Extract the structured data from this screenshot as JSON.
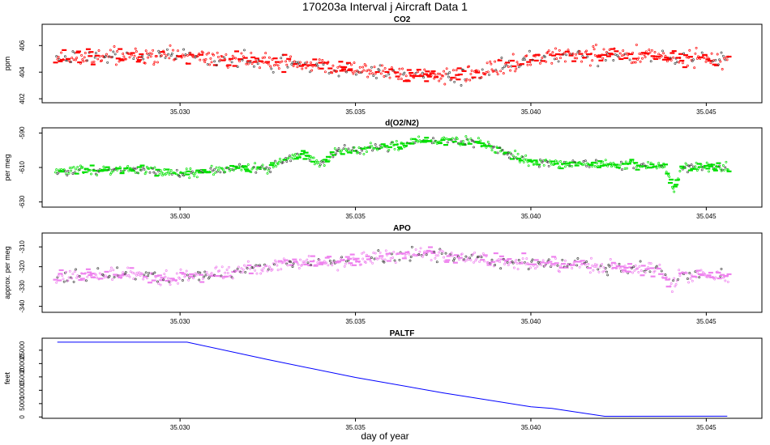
{
  "figure": {
    "title": "170203a   Interval j Aircraft Data 1",
    "xlabel": "day of year"
  },
  "chart_data": [
    {
      "type": "scatter",
      "title": "CO2",
      "ylabel": "ppm",
      "color": "#ff0000",
      "xlim": [
        35.0263,
        35.0458
      ],
      "ylim": [
        401.7,
        407.6
      ],
      "xticks": [
        35.03,
        35.035,
        35.04,
        35.045
      ],
      "xtick_labels": [
        "35.030",
        "35.035",
        "35.040",
        "35.045"
      ],
      "yticks": [
        402,
        404,
        406
      ],
      "ytick_labels": [
        "402",
        "404",
        "406"
      ],
      "trend": [
        [
          35.0263,
          405.1
        ],
        [
          35.03,
          405.2
        ],
        [
          35.0325,
          404.8
        ],
        [
          35.0345,
          404.3
        ],
        [
          35.0365,
          403.8
        ],
        [
          35.0378,
          403.6
        ],
        [
          35.039,
          404.3
        ],
        [
          35.0405,
          405.2
        ],
        [
          35.0425,
          405.3
        ],
        [
          35.0455,
          405.0
        ]
      ],
      "noise": 0.6,
      "seed": 11
    },
    {
      "type": "scatter",
      "title": "d(O2/N2)",
      "ylabel": "per meg",
      "color": "#00e000",
      "xlim": [
        35.0263,
        35.0458
      ],
      "ylim": [
        -633,
        -587
      ],
      "xticks": [
        35.03,
        35.035,
        35.04,
        35.045
      ],
      "xtick_labels": [
        "35.030",
        "35.035",
        "35.040",
        "35.045"
      ],
      "yticks": [
        -630,
        -610,
        -590
      ],
      "ytick_labels": [
        "-630",
        "-610",
        "-590"
      ],
      "trend": [
        [
          35.0263,
          -612
        ],
        [
          35.029,
          -611
        ],
        [
          35.03,
          -614
        ],
        [
          35.0318,
          -610
        ],
        [
          35.0325,
          -611
        ],
        [
          35.033,
          -605
        ],
        [
          35.0335,
          -602
        ],
        [
          35.034,
          -608
        ],
        [
          35.0345,
          -600
        ],
        [
          35.035,
          -600
        ],
        [
          35.036,
          -598
        ],
        [
          35.037,
          -594
        ],
        [
          35.0385,
          -595
        ],
        [
          35.039,
          -600
        ],
        [
          35.0395,
          -603
        ],
        [
          35.04,
          -607
        ],
        [
          35.042,
          -608
        ],
        [
          35.0438,
          -609
        ],
        [
          35.0441,
          -623
        ],
        [
          35.0443,
          -610
        ],
        [
          35.0455,
          -610
        ]
      ],
      "noise": 2.5,
      "seed": 23
    },
    {
      "type": "scatter",
      "title": "APO",
      "ylabel": "approx. per meg",
      "color": "#ee82ee",
      "xlim": [
        35.0263,
        35.0458
      ],
      "ylim": [
        -343,
        -303
      ],
      "xticks": [
        35.03,
        35.035,
        35.04,
        35.045
      ],
      "xtick_labels": [
        "35.030",
        "35.035",
        "35.040",
        "35.045"
      ],
      "yticks": [
        -340,
        -330,
        -320,
        -310
      ],
      "ytick_labels": [
        "-340",
        "-330",
        "-320",
        "-310"
      ],
      "trend": [
        [
          35.0263,
          -325
        ],
        [
          35.0285,
          -324
        ],
        [
          35.03,
          -326
        ],
        [
          35.0315,
          -323
        ],
        [
          35.033,
          -318
        ],
        [
          35.0345,
          -317
        ],
        [
          35.036,
          -315
        ],
        [
          35.037,
          -313
        ],
        [
          35.0385,
          -316
        ],
        [
          35.04,
          -318
        ],
        [
          35.042,
          -320
        ],
        [
          35.0437,
          -321
        ],
        [
          35.044,
          -331
        ],
        [
          35.0443,
          -323
        ],
        [
          35.0455,
          -325
        ]
      ],
      "noise": 3.5,
      "seed": 37
    },
    {
      "type": "line",
      "title": "PALTF",
      "ylabel": "feet",
      "color": "#0000ff",
      "xlim": [
        35.0263,
        35.0458
      ],
      "ylim": [
        -500,
        29500
      ],
      "xticks": [
        35.03,
        35.035,
        35.04,
        35.045
      ],
      "xtick_labels": [
        "35.030",
        "35.035",
        "35.040",
        "35.045"
      ],
      "yticks": [
        0,
        5000,
        10000,
        15000,
        20000,
        25000
      ],
      "ytick_labels": [
        "0",
        "5000",
        "10000",
        "15000",
        "20000",
        "25000"
      ],
      "x": [
        35.0265,
        35.0302,
        35.0325,
        35.035,
        35.0375,
        35.04,
        35.0406,
        35.0421,
        35.0456
      ],
      "y": [
        28000,
        28000,
        21500,
        14800,
        9000,
        3800,
        3200,
        250,
        300
      ]
    }
  ]
}
